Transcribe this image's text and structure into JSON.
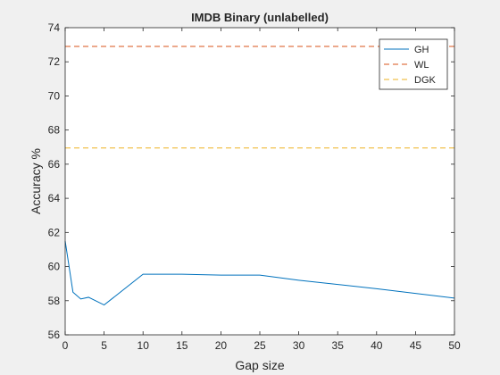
{
  "chart_data": {
    "type": "line",
    "title": "IMDB Binary (unlabelled)",
    "xlabel": "Gap size",
    "ylabel": "Accuracy %",
    "xlim": [
      0,
      50
    ],
    "ylim": [
      56,
      74
    ],
    "xticks": [
      0,
      5,
      10,
      15,
      20,
      25,
      30,
      35,
      40,
      45,
      50
    ],
    "yticks": [
      56,
      58,
      60,
      62,
      64,
      66,
      68,
      70,
      72,
      74
    ],
    "grid": false,
    "legend_position": "top-right",
    "series": [
      {
        "name": "GH",
        "style": "solid",
        "color": "#0072bd",
        "x": [
          0,
          0.5,
          1,
          2,
          3,
          5,
          10,
          15,
          20,
          25,
          30,
          40,
          50
        ],
        "y": [
          61.5,
          60.0,
          58.5,
          58.1,
          58.2,
          57.75,
          59.55,
          59.55,
          59.5,
          59.5,
          59.2,
          58.7,
          58.15
        ]
      },
      {
        "name": "WL",
        "style": "dashed",
        "color": "#d95319",
        "x": [
          0,
          50
        ],
        "y": [
          72.9,
          72.9
        ]
      },
      {
        "name": "DGK",
        "style": "dashed",
        "color": "#edb120",
        "x": [
          0,
          50
        ],
        "y": [
          66.95,
          66.95
        ]
      }
    ]
  }
}
